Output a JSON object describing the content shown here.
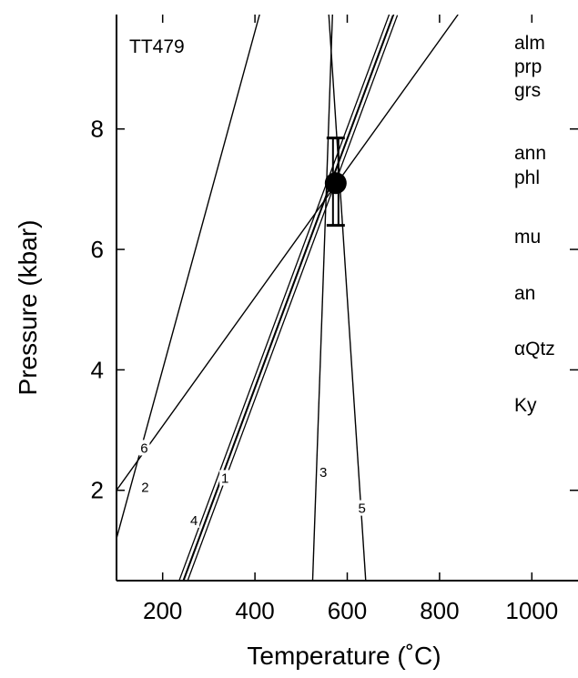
{
  "chart_data": {
    "type": "line",
    "title": "TT479",
    "xlabel": "Temperature (˚C)",
    "ylabel": "Pressure (kbar)",
    "xlim": [
      100,
      1100
    ],
    "ylim": [
      0.5,
      9.9
    ],
    "x_ticks": [
      200,
      400,
      600,
      800,
      1000
    ],
    "y_ticks": [
      2,
      4,
      6,
      8
    ],
    "grid": false,
    "series": [
      {
        "name": "1",
        "double": true,
        "points": [
          [
            250,
            0.5
          ],
          [
            705,
            9.9
          ]
        ],
        "label_at": [
          335,
          2.2
        ]
      },
      {
        "name": "2",
        "double": false,
        "points": [
          [
            100,
            1.2
          ],
          [
            410,
            9.9
          ]
        ],
        "label_at": [
          162,
          2.05
        ]
      },
      {
        "name": "3",
        "double": false,
        "points": [
          [
            525,
            0.5
          ],
          [
            568,
            9.9
          ]
        ],
        "label_at": [
          548,
          2.3
        ]
      },
      {
        "name": "4",
        "double": true,
        "points": [
          [
            240,
            0.5
          ],
          [
            695,
            9.9
          ]
        ],
        "label_at": [
          268,
          1.5
        ]
      },
      {
        "name": "5",
        "double": false,
        "points": [
          [
            640,
            0.5
          ],
          [
            560,
            9.9
          ]
        ],
        "label_at": [
          632,
          1.7
        ]
      },
      {
        "name": "6",
        "double": false,
        "points": [
          [
            100,
            2.0
          ],
          [
            840,
            9.9
          ]
        ],
        "label_at": [
          160,
          2.7
        ]
      }
    ],
    "result": {
      "x": 575,
      "y": 7.1,
      "error_low": 6.4,
      "error_high": 7.85
    },
    "phases": [
      "alm",
      "prp",
      "grs",
      "ann",
      "phl",
      "mu",
      "an",
      "αQtz",
      "Ky"
    ]
  }
}
